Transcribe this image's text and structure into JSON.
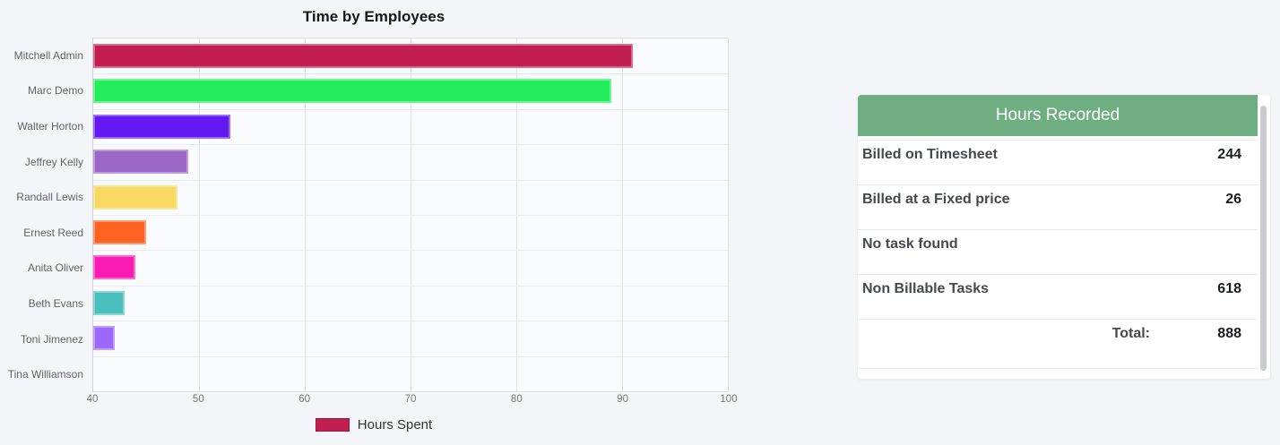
{
  "colors": {
    "page_bg": "#f3f5f9",
    "plot_bg": "#fafbfe",
    "panel_header_bg": "#6eae81",
    "legend_swatch": "#c11f4f",
    "scrollbar_thumb": "#c9cbce"
  },
  "chart_data": {
    "type": "bar",
    "orientation": "horizontal",
    "title": "Time by Employees",
    "categories": [
      "Mitchell Admin",
      "Marc Demo",
      "Walter Horton",
      "Jeffrey Kelly",
      "Randall Lewis",
      "Ernest Reed",
      "Anita Oliver",
      "Beth Evans",
      "Toni Jimenez",
      "Tina Williamson"
    ],
    "series": [
      {
        "name": "Hours Spent",
        "values": [
          91,
          89,
          53,
          49,
          48,
          45,
          44,
          43,
          42,
          40
        ]
      }
    ],
    "bar_colors": [
      "#c11f4f",
      "#23ed5b",
      "#6419f2",
      "#9c68c7",
      "#f8d963",
      "#fe6220",
      "#fa1bb5",
      "#4abfbd",
      "#9e69fb",
      null
    ],
    "xlabel": "",
    "ylabel": "",
    "xlim": [
      40,
      100
    ],
    "x_ticks": [
      40,
      50,
      60,
      70,
      80,
      90,
      100
    ],
    "grid": true,
    "legend_position": "bottom"
  },
  "panel": {
    "title": "Hours Recorded",
    "rows": [
      {
        "label": "Billed on Timesheet",
        "value": "244",
        "is_total": false
      },
      {
        "label": "Billed at a Fixed price",
        "value": "26",
        "is_total": false
      },
      {
        "label": "No task found",
        "value": "",
        "is_total": false
      },
      {
        "label": "Non Billable Tasks",
        "value": "618",
        "is_total": false
      },
      {
        "label": "Total:",
        "value": "888",
        "is_total": true
      }
    ]
  }
}
